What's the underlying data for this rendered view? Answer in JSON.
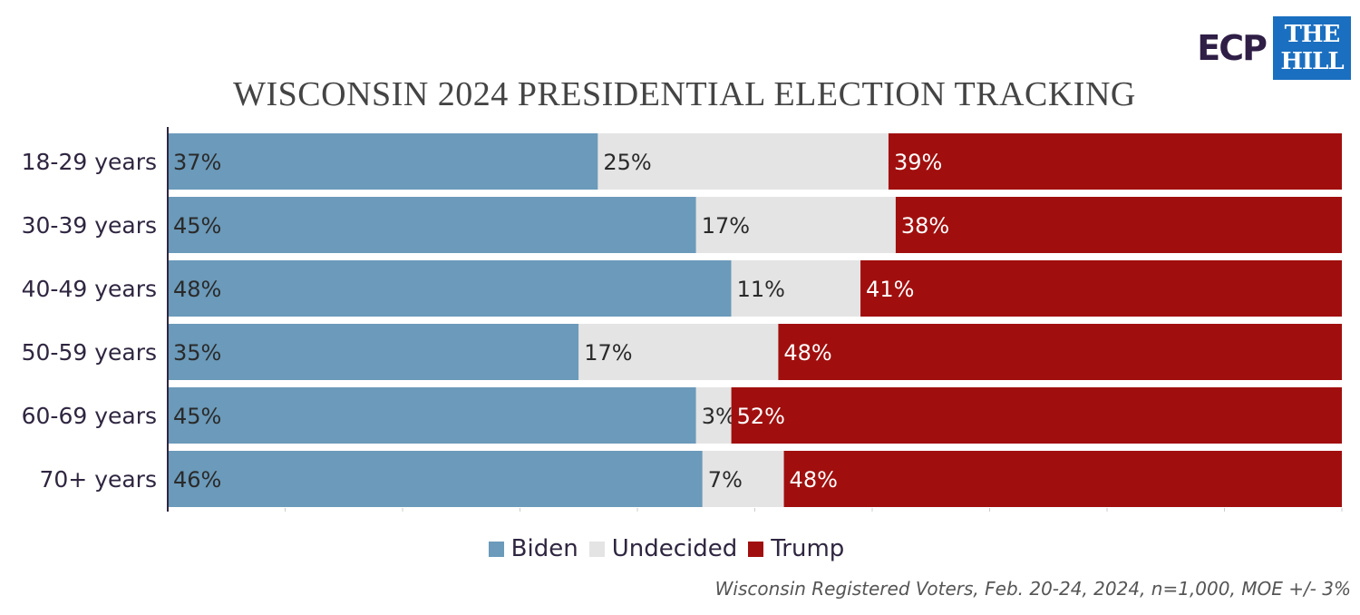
{
  "logos": {
    "ecp_text": "ECP",
    "hill_line1": "THE",
    "hill_line2": "HILL"
  },
  "colors": {
    "biden": "#6b9aba",
    "undecided": "#e4e4e4",
    "trump": "#a00f0e",
    "axis": "#2f2640"
  },
  "chart_data": {
    "type": "bar",
    "orientation": "horizontal",
    "stacked": true,
    "title": "WISCONSIN 2024 PRESIDENTIAL ELECTION TRACKING",
    "categories": [
      "18-29 years",
      "30-39 years",
      "40-49 years",
      "50-59 years",
      "60-69 years",
      "70+ years"
    ],
    "series": [
      {
        "name": "Biden",
        "values": [
          37,
          45,
          48,
          35,
          45,
          46
        ],
        "labels": [
          "37%",
          "45%",
          "48%",
          "35%",
          "45%",
          "46%"
        ]
      },
      {
        "name": "Undecided",
        "values": [
          25,
          17,
          11,
          17,
          3,
          7
        ],
        "labels": [
          "25%",
          "17%",
          "11%",
          "17%",
          "3%",
          "7%"
        ]
      },
      {
        "name": "Trump",
        "values": [
          39,
          38,
          41,
          48,
          52,
          48
        ],
        "labels": [
          "39%",
          "38%",
          "41%",
          "48%",
          "52%",
          "48%"
        ]
      }
    ],
    "legend_position": "bottom",
    "grid": false
  },
  "source_note": "Wisconsin Registered Voters, Feb. 20-24, 2024, n=1,000, MOE +/- 3%"
}
